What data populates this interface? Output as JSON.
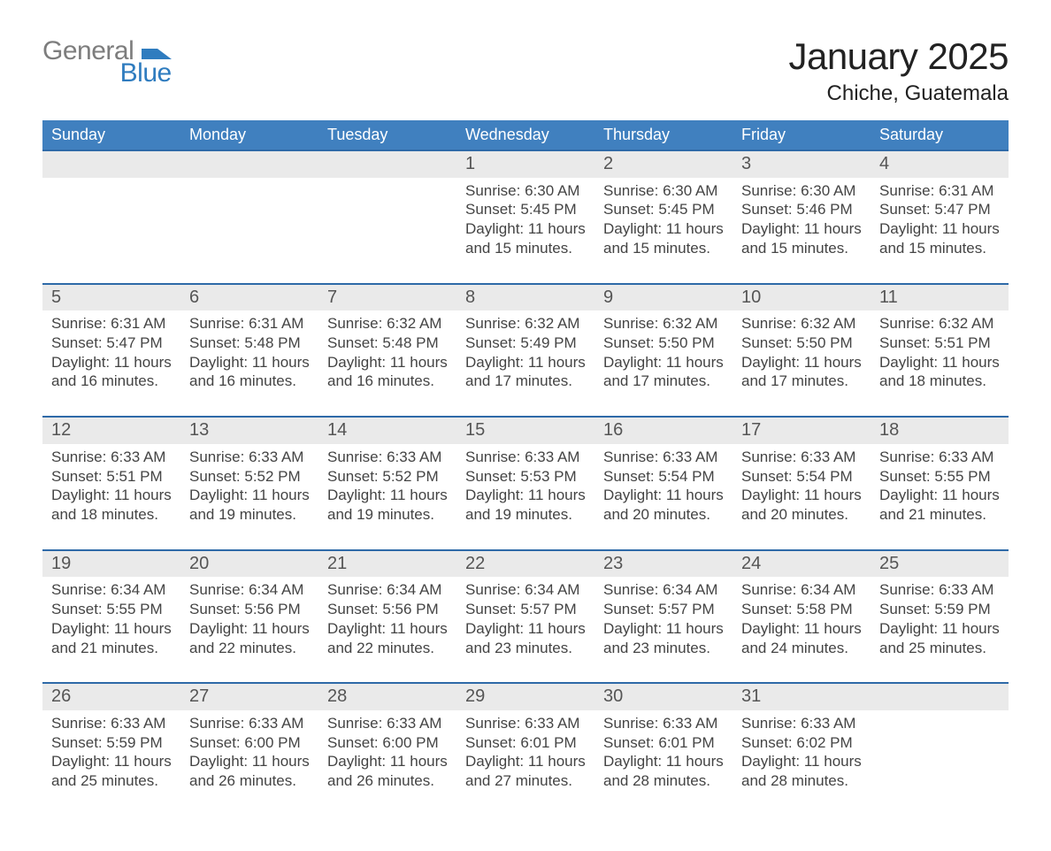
{
  "brand": {
    "line1": "General",
    "line2": "Blue"
  },
  "title": "January 2025",
  "location": "Chiche, Guatemala",
  "colors": {
    "header_bg": "#4080bf",
    "row_separator": "#2e6aa8",
    "day_num_bg": "#eaeaea",
    "text": "#333333",
    "logo_gray": "#7d7d7d",
    "logo_blue": "#2f7cbf",
    "background": "#ffffff"
  },
  "typography": {
    "title_fontsize_pt": 32,
    "location_fontsize_pt": 18,
    "header_fontsize_pt": 14,
    "body_fontsize_pt": 13,
    "font_family": "Arial"
  },
  "day_headers": [
    "Sunday",
    "Monday",
    "Tuesday",
    "Wednesday",
    "Thursday",
    "Friday",
    "Saturday"
  ],
  "weeks": [
    [
      null,
      null,
      null,
      {
        "n": "1",
        "sunrise": "Sunrise: 6:30 AM",
        "sunset": "Sunset: 5:45 PM",
        "dl1": "Daylight: 11 hours",
        "dl2": "and 15 minutes."
      },
      {
        "n": "2",
        "sunrise": "Sunrise: 6:30 AM",
        "sunset": "Sunset: 5:45 PM",
        "dl1": "Daylight: 11 hours",
        "dl2": "and 15 minutes."
      },
      {
        "n": "3",
        "sunrise": "Sunrise: 6:30 AM",
        "sunset": "Sunset: 5:46 PM",
        "dl1": "Daylight: 11 hours",
        "dl2": "and 15 minutes."
      },
      {
        "n": "4",
        "sunrise": "Sunrise: 6:31 AM",
        "sunset": "Sunset: 5:47 PM",
        "dl1": "Daylight: 11 hours",
        "dl2": "and 15 minutes."
      }
    ],
    [
      {
        "n": "5",
        "sunrise": "Sunrise: 6:31 AM",
        "sunset": "Sunset: 5:47 PM",
        "dl1": "Daylight: 11 hours",
        "dl2": "and 16 minutes."
      },
      {
        "n": "6",
        "sunrise": "Sunrise: 6:31 AM",
        "sunset": "Sunset: 5:48 PM",
        "dl1": "Daylight: 11 hours",
        "dl2": "and 16 minutes."
      },
      {
        "n": "7",
        "sunrise": "Sunrise: 6:32 AM",
        "sunset": "Sunset: 5:48 PM",
        "dl1": "Daylight: 11 hours",
        "dl2": "and 16 minutes."
      },
      {
        "n": "8",
        "sunrise": "Sunrise: 6:32 AM",
        "sunset": "Sunset: 5:49 PM",
        "dl1": "Daylight: 11 hours",
        "dl2": "and 17 minutes."
      },
      {
        "n": "9",
        "sunrise": "Sunrise: 6:32 AM",
        "sunset": "Sunset: 5:50 PM",
        "dl1": "Daylight: 11 hours",
        "dl2": "and 17 minutes."
      },
      {
        "n": "10",
        "sunrise": "Sunrise: 6:32 AM",
        "sunset": "Sunset: 5:50 PM",
        "dl1": "Daylight: 11 hours",
        "dl2": "and 17 minutes."
      },
      {
        "n": "11",
        "sunrise": "Sunrise: 6:32 AM",
        "sunset": "Sunset: 5:51 PM",
        "dl1": "Daylight: 11 hours",
        "dl2": "and 18 minutes."
      }
    ],
    [
      {
        "n": "12",
        "sunrise": "Sunrise: 6:33 AM",
        "sunset": "Sunset: 5:51 PM",
        "dl1": "Daylight: 11 hours",
        "dl2": "and 18 minutes."
      },
      {
        "n": "13",
        "sunrise": "Sunrise: 6:33 AM",
        "sunset": "Sunset: 5:52 PM",
        "dl1": "Daylight: 11 hours",
        "dl2": "and 19 minutes."
      },
      {
        "n": "14",
        "sunrise": "Sunrise: 6:33 AM",
        "sunset": "Sunset: 5:52 PM",
        "dl1": "Daylight: 11 hours",
        "dl2": "and 19 minutes."
      },
      {
        "n": "15",
        "sunrise": "Sunrise: 6:33 AM",
        "sunset": "Sunset: 5:53 PM",
        "dl1": "Daylight: 11 hours",
        "dl2": "and 19 minutes."
      },
      {
        "n": "16",
        "sunrise": "Sunrise: 6:33 AM",
        "sunset": "Sunset: 5:54 PM",
        "dl1": "Daylight: 11 hours",
        "dl2": "and 20 minutes."
      },
      {
        "n": "17",
        "sunrise": "Sunrise: 6:33 AM",
        "sunset": "Sunset: 5:54 PM",
        "dl1": "Daylight: 11 hours",
        "dl2": "and 20 minutes."
      },
      {
        "n": "18",
        "sunrise": "Sunrise: 6:33 AM",
        "sunset": "Sunset: 5:55 PM",
        "dl1": "Daylight: 11 hours",
        "dl2": "and 21 minutes."
      }
    ],
    [
      {
        "n": "19",
        "sunrise": "Sunrise: 6:34 AM",
        "sunset": "Sunset: 5:55 PM",
        "dl1": "Daylight: 11 hours",
        "dl2": "and 21 minutes."
      },
      {
        "n": "20",
        "sunrise": "Sunrise: 6:34 AM",
        "sunset": "Sunset: 5:56 PM",
        "dl1": "Daylight: 11 hours",
        "dl2": "and 22 minutes."
      },
      {
        "n": "21",
        "sunrise": "Sunrise: 6:34 AM",
        "sunset": "Sunset: 5:56 PM",
        "dl1": "Daylight: 11 hours",
        "dl2": "and 22 minutes."
      },
      {
        "n": "22",
        "sunrise": "Sunrise: 6:34 AM",
        "sunset": "Sunset: 5:57 PM",
        "dl1": "Daylight: 11 hours",
        "dl2": "and 23 minutes."
      },
      {
        "n": "23",
        "sunrise": "Sunrise: 6:34 AM",
        "sunset": "Sunset: 5:57 PM",
        "dl1": "Daylight: 11 hours",
        "dl2": "and 23 minutes."
      },
      {
        "n": "24",
        "sunrise": "Sunrise: 6:34 AM",
        "sunset": "Sunset: 5:58 PM",
        "dl1": "Daylight: 11 hours",
        "dl2": "and 24 minutes."
      },
      {
        "n": "25",
        "sunrise": "Sunrise: 6:33 AM",
        "sunset": "Sunset: 5:59 PM",
        "dl1": "Daylight: 11 hours",
        "dl2": "and 25 minutes."
      }
    ],
    [
      {
        "n": "26",
        "sunrise": "Sunrise: 6:33 AM",
        "sunset": "Sunset: 5:59 PM",
        "dl1": "Daylight: 11 hours",
        "dl2": "and 25 minutes."
      },
      {
        "n": "27",
        "sunrise": "Sunrise: 6:33 AM",
        "sunset": "Sunset: 6:00 PM",
        "dl1": "Daylight: 11 hours",
        "dl2": "and 26 minutes."
      },
      {
        "n": "28",
        "sunrise": "Sunrise: 6:33 AM",
        "sunset": "Sunset: 6:00 PM",
        "dl1": "Daylight: 11 hours",
        "dl2": "and 26 minutes."
      },
      {
        "n": "29",
        "sunrise": "Sunrise: 6:33 AM",
        "sunset": "Sunset: 6:01 PM",
        "dl1": "Daylight: 11 hours",
        "dl2": "and 27 minutes."
      },
      {
        "n": "30",
        "sunrise": "Sunrise: 6:33 AM",
        "sunset": "Sunset: 6:01 PM",
        "dl1": "Daylight: 11 hours",
        "dl2": "and 28 minutes."
      },
      {
        "n": "31",
        "sunrise": "Sunrise: 6:33 AM",
        "sunset": "Sunset: 6:02 PM",
        "dl1": "Daylight: 11 hours",
        "dl2": "and 28 minutes."
      },
      null
    ]
  ]
}
